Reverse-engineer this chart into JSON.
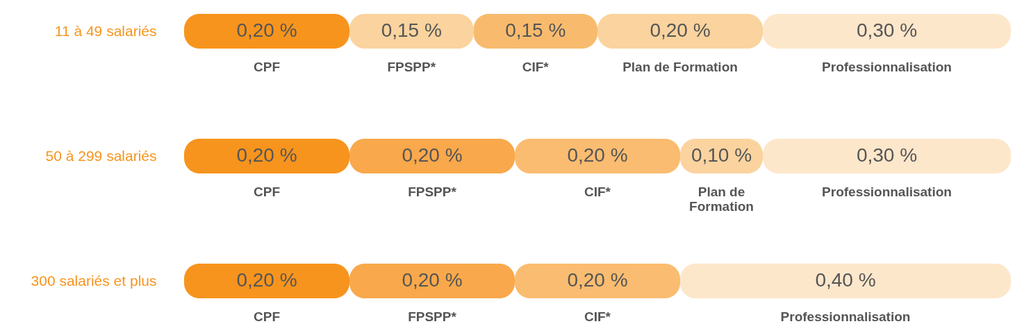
{
  "chart_data": {
    "type": "bar",
    "orientation": "horizontal",
    "stacked": true,
    "categories": [
      "11 à 49 salariés",
      "50 à 299 salariés",
      "300 salariés et plus"
    ],
    "series": [
      {
        "name": "CPF",
        "colors": [
          "#f7941d",
          "#f7941d",
          "#f7941d"
        ],
        "values": [
          0.2,
          0.2,
          0.2
        ],
        "value_labels": [
          "0,20 %",
          "0,20 %",
          "0,20 %"
        ]
      },
      {
        "name": "FPSPP*",
        "colors": [
          "#fad39e",
          "#f9a84b",
          "#f9a84b"
        ],
        "values": [
          0.15,
          0.2,
          0.2
        ],
        "value_labels": [
          "0,15 %",
          "0,20 %",
          "0,20 %"
        ]
      },
      {
        "name": "CIF*",
        "colors": [
          "#f8bb6e",
          "#fabc70",
          "#fabc70"
        ],
        "values": [
          0.15,
          0.2,
          0.2
        ],
        "value_labels": [
          "0,15 %",
          "0,20 %",
          "0,20 %"
        ]
      },
      {
        "name": "Plan de Formation",
        "colors": [
          "#fad39e",
          "#fbd39f",
          null
        ],
        "values": [
          0.2,
          0.1,
          null
        ],
        "value_labels": [
          "0,20 %",
          "0,10 %",
          null
        ]
      },
      {
        "name": "Professionnalisation",
        "colors": [
          "#fde7cb",
          "#fde7cb",
          "#fde7cb"
        ],
        "values": [
          0.3,
          0.3,
          0.4
        ],
        "value_labels": [
          "0,30 %",
          "0,30 %",
          "0,40 %"
        ]
      }
    ]
  }
}
